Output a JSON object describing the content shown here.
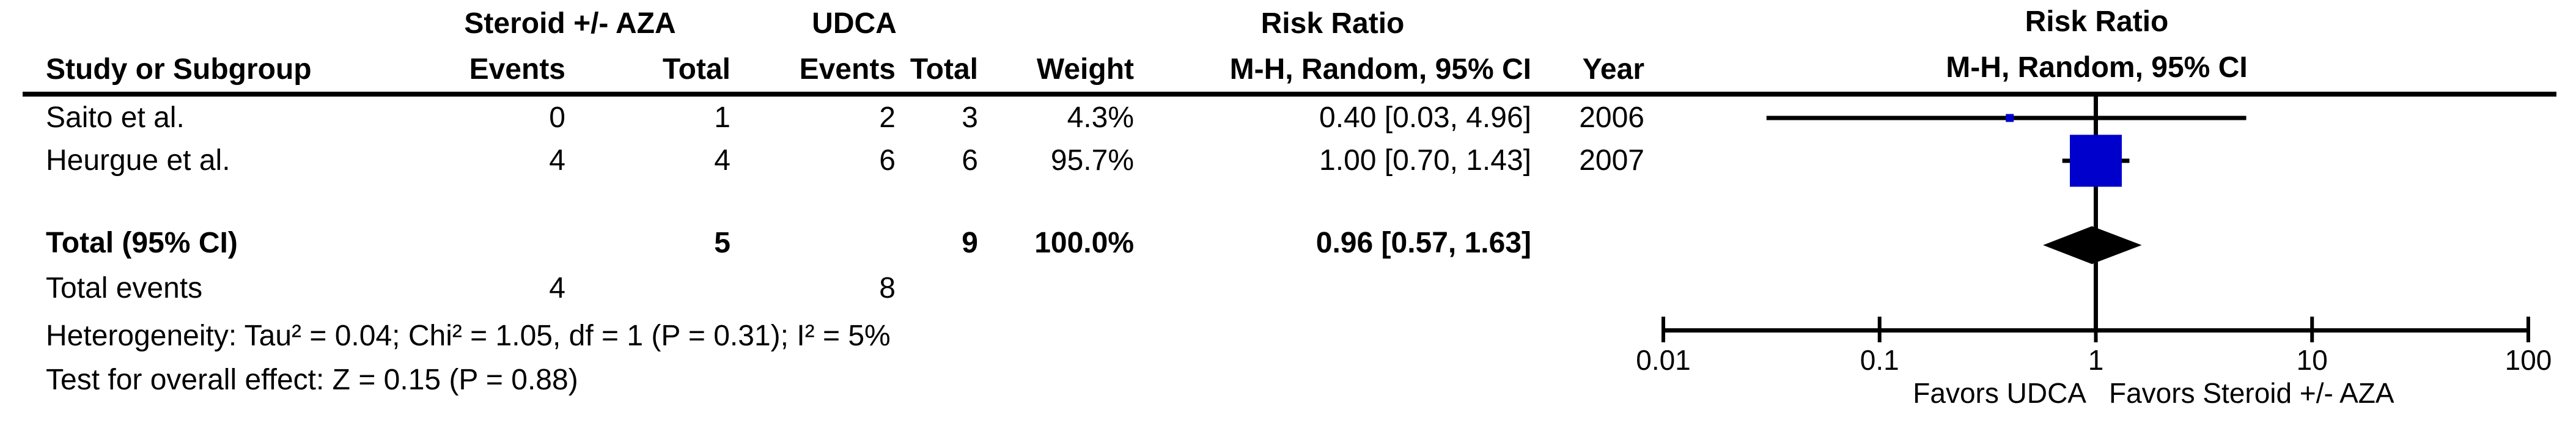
{
  "table": {
    "group1_header": "Steroid +/- AZA",
    "group2_header": "UDCA",
    "rr_col_group_header": "Risk Ratio",
    "plot_header_line1": "Risk Ratio",
    "plot_header_line2": "M-H, Random, 95% CI",
    "col_headers": {
      "study": "Study or Subgroup",
      "events1": "Events",
      "total1": "Total",
      "events2": "Events",
      "total2": "Total",
      "weight": "Weight",
      "mh_ci": "M-H, Random, 95% CI",
      "year": "Year"
    },
    "rows": [
      {
        "study": "Saito et al.",
        "events1": "0",
        "total1": "1",
        "events2": "2",
        "total2": "3",
        "weight": "4.3%",
        "ci": "0.40 [0.03, 4.96]",
        "year": "2006"
      },
      {
        "study": "Heurgue et al.",
        "events1": "4",
        "total1": "4",
        "events2": "6",
        "total2": "6",
        "weight": "95.7%",
        "ci": "1.00 [0.70, 1.43]",
        "year": "2007"
      }
    ],
    "total_row": {
      "label": "Total (95% CI)",
      "total1": "5",
      "total2": "9",
      "weight": "100.0%",
      "ci": "0.96 [0.57, 1.63]"
    },
    "total_events_row": {
      "label": "Total events",
      "events1": "4",
      "events2": "8"
    },
    "heterogeneity": "Heterogeneity: Tau² = 0.04; Chi² = 1.05, df = 1 (P = 0.31); I² = 5%",
    "overall_effect": "Test for overall effect: Z = 0.15 (P = 0.88)"
  },
  "chart_data": {
    "type": "forest",
    "x_scale": "log10",
    "axis_min": 0.01,
    "axis_max": 100,
    "axis_ticks": [
      0.01,
      0.1,
      1,
      10,
      100
    ],
    "axis_labels": [
      "0.01",
      "0.1",
      "1",
      "10",
      "100"
    ],
    "null_line": 1,
    "effect_measure": "Risk Ratio",
    "method": "M-H, Random, 95% CI",
    "favors_left": "Favors UDCA",
    "favors_right": "Favors Steroid +/- AZA",
    "studies": [
      {
        "name": "Saito et al.",
        "rr": 0.4,
        "ci_low": 0.03,
        "ci_high": 4.96,
        "weight_pct": 4.3,
        "year": 2006
      },
      {
        "name": "Heurgue et al.",
        "rr": 1.0,
        "ci_low": 0.7,
        "ci_high": 1.43,
        "weight_pct": 95.7,
        "year": 2007
      }
    ],
    "total": {
      "rr": 0.96,
      "ci_low": 0.57,
      "ci_high": 1.63,
      "weight_pct": 100.0
    },
    "marker_color": "#0000CC",
    "diamond_color": "#000000",
    "line_color": "#000000"
  }
}
